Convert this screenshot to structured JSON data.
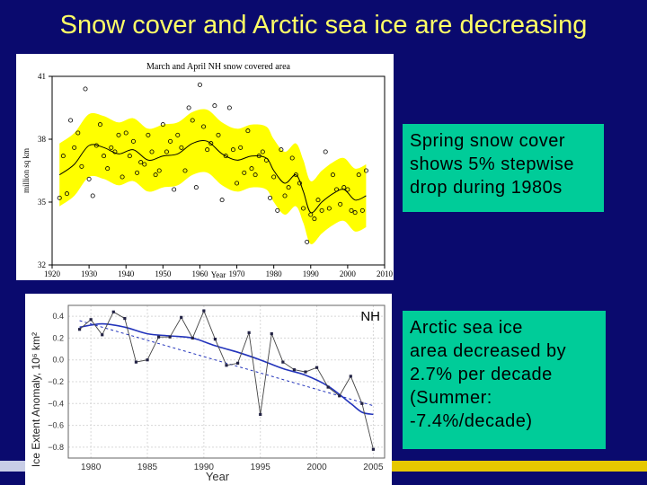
{
  "slide": {
    "title": "Snow cover and Arctic sea ice are decreasing",
    "note_snow": [
      "Spring snow cover",
      "shows 5% stepwise",
      "drop during 1980s"
    ],
    "note_ice": [
      "Arctic sea ice",
      "area decreased by",
      "2.7% per decade",
      "(Summer:",
      "-7.4%/decade)"
    ]
  },
  "chart_data": [
    {
      "type": "scatter",
      "title": "March and April NH snow covered area",
      "xlabel": "Year",
      "ylabel": "million sq km",
      "xlim": [
        1920,
        2010
      ],
      "ylim": [
        32,
        41
      ],
      "x_ticks": [
        1920,
        1930,
        1940,
        1950,
        1960,
        1970,
        1980,
        1990,
        2000,
        2010
      ],
      "y_ticks": [
        32,
        35,
        38,
        41
      ],
      "colors": {
        "band": "#ffff00",
        "points": "#000000",
        "smooth": "#000000"
      },
      "series": [
        {
          "x": [
            1922,
            1923,
            1924,
            1925,
            1926,
            1927,
            1928,
            1929,
            1930,
            1931,
            1932,
            1933,
            1934,
            1935,
            1936,
            1937,
            1938,
            1939,
            1940,
            1941,
            1942,
            1943,
            1944,
            1945,
            1946,
            1947,
            1948,
            1949,
            1950,
            1951,
            1952,
            1953,
            1954,
            1955,
            1956,
            1957,
            1958,
            1959,
            1960,
            1961,
            1962,
            1963,
            1964,
            1965,
            1966,
            1967,
            1968,
            1969,
            1970,
            1971,
            1972,
            1973,
            1974,
            1975,
            1976,
            1977,
            1978,
            1979,
            1980,
            1981,
            1982,
            1983,
            1984,
            1985,
            1986,
            1987,
            1988,
            1989,
            1990,
            1991,
            1992,
            1993,
            1994,
            1995,
            1996,
            1997,
            1998,
            1999,
            2000,
            2001,
            2002,
            2003,
            2004,
            2005
          ],
          "values": [
            35.2,
            37.2,
            35.4,
            38.9,
            37.6,
            38.3,
            36.7,
            40.4,
            36.1,
            35.3,
            37.7,
            38.7,
            37.2,
            36.6,
            37.6,
            37.4,
            38.2,
            36.2,
            38.3,
            37.2,
            37.9,
            36.4,
            36.9,
            36.8,
            38.2,
            37.4,
            36.3,
            36.5,
            38.7,
            37.4,
            37.9,
            35.6,
            38.2,
            37.6,
            36.5,
            39.5,
            38.9,
            35.7,
            40.6,
            38.6,
            37.5,
            37.8,
            39.6,
            38.2,
            35.1,
            37.2,
            39.5,
            37.5,
            35.9,
            37.6,
            36.4,
            38.4,
            36.6,
            36.3,
            37.2,
            37.4,
            37.0,
            35.2,
            36.2,
            34.6,
            37.5,
            35.3,
            35.7,
            37.1,
            36.3,
            35.9,
            34.7,
            33.1,
            34.4,
            34.2,
            35.1,
            34.6,
            37.4,
            34.7,
            36.3,
            35.6,
            34.9,
            35.7,
            35.6,
            34.6,
            34.5,
            36.3,
            34.6,
            36.5
          ]
        },
        {
          "name": "smoothed",
          "x": [
            1922,
            1926,
            1930,
            1934,
            1938,
            1942,
            1946,
            1950,
            1954,
            1958,
            1962,
            1966,
            1970,
            1974,
            1978,
            1980,
            1983,
            1986,
            1988,
            1990,
            1993,
            1996,
            1999,
            2002,
            2005
          ],
          "values": [
            36.3,
            36.8,
            37.7,
            37.6,
            37.3,
            37.5,
            37.0,
            37.2,
            37.3,
            37.8,
            37.9,
            37.3,
            37.0,
            37.2,
            37.1,
            36.5,
            35.9,
            36.3,
            35.5,
            34.5,
            35.0,
            35.4,
            35.6,
            35.1,
            35.3
          ]
        }
      ]
    },
    {
      "type": "line",
      "title": "NH",
      "xlabel": "Year",
      "ylabel": "Ice Extent Anomaly, 10⁶ km²",
      "xlim": [
        1978,
        2006
      ],
      "ylim": [
        -0.9,
        0.5
      ],
      "x_ticks": [
        1980,
        1985,
        1990,
        1995,
        2000,
        2005
      ],
      "y_ticks": [
        0.4,
        0.2,
        0.0,
        -0.2,
        -0.4,
        -0.6,
        -0.8
      ],
      "y_tick_labels": [
        "0.4",
        "0.2",
        "0.0",
        "−0.2",
        "−0.4",
        "−0.6",
        "−0.8"
      ],
      "colors": {
        "annual": "#444444",
        "smooth": "#2233bb",
        "trend": "#2233bb"
      },
      "series": [
        {
          "name": "annual",
          "x": [
            1979,
            1980,
            1981,
            1982,
            1983,
            1984,
            1985,
            1986,
            1987,
            1988,
            1989,
            1990,
            1991,
            1992,
            1993,
            1994,
            1995,
            1996,
            1997,
            1998,
            1999,
            2000,
            2001,
            2002,
            2003,
            2004,
            2005
          ],
          "values": [
            0.28,
            0.37,
            0.23,
            0.44,
            0.38,
            -0.02,
            0.0,
            0.21,
            0.21,
            0.39,
            0.2,
            0.45,
            0.19,
            -0.05,
            -0.03,
            0.25,
            -0.5,
            0.24,
            -0.02,
            -0.09,
            -0.11,
            -0.07,
            -0.25,
            -0.33,
            -0.15,
            -0.4,
            -0.82
          ]
        },
        {
          "name": "smoothed",
          "x": [
            1979,
            1981,
            1983,
            1985,
            1987,
            1989,
            1991,
            1993,
            1995,
            1997,
            1999,
            2001,
            2003,
            2004,
            2005
          ],
          "values": [
            0.3,
            0.33,
            0.3,
            0.24,
            0.22,
            0.2,
            0.13,
            0.07,
            0.0,
            -0.08,
            -0.14,
            -0.24,
            -0.4,
            -0.48,
            -0.5
          ]
        },
        {
          "name": "trend",
          "x": [
            1979,
            2005
          ],
          "values": [
            0.36,
            -0.42
          ]
        }
      ]
    }
  ]
}
